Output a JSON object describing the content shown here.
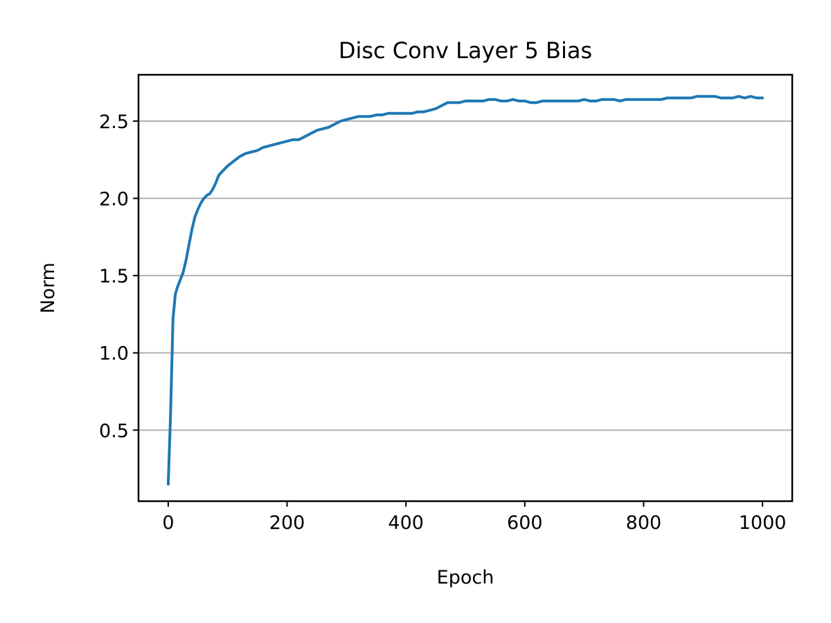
{
  "chart_data": {
    "type": "line",
    "title": "Disc Conv Layer 5 Bias",
    "xlabel": "Epoch",
    "ylabel": "Norm",
    "xlim": [
      -50,
      1050
    ],
    "ylim": [
      0.04,
      2.8
    ],
    "x_ticks": [
      0,
      200,
      400,
      600,
      800,
      1000
    ],
    "x_tick_labels": [
      "0",
      "200",
      "400",
      "600",
      "800",
      "1000"
    ],
    "y_ticks": [
      0.5,
      1.0,
      1.5,
      2.0,
      2.5
    ],
    "y_tick_labels": [
      "0.5",
      "1.0",
      "1.5",
      "2.0",
      "2.5"
    ],
    "grid": "y-major",
    "legend": "none",
    "colors": {
      "series": "#1f77b4",
      "grid": "#b0b0b0"
    },
    "series": [
      {
        "x": [
          0,
          4,
          8,
          10,
          12,
          15,
          20,
          25,
          30,
          35,
          40,
          45,
          50,
          55,
          60,
          65,
          70,
          75,
          80,
          85,
          90,
          95,
          100,
          110,
          120,
          130,
          140,
          150,
          160,
          170,
          180,
          190,
          200,
          210,
          220,
          230,
          240,
          250,
          260,
          270,
          280,
          290,
          300,
          310,
          320,
          330,
          340,
          350,
          360,
          370,
          380,
          390,
          400,
          410,
          420,
          430,
          440,
          450,
          460,
          470,
          480,
          490,
          500,
          510,
          520,
          530,
          540,
          550,
          560,
          570,
          580,
          590,
          600,
          610,
          620,
          630,
          640,
          650,
          660,
          670,
          680,
          690,
          700,
          710,
          720,
          730,
          740,
          750,
          760,
          770,
          780,
          790,
          800,
          810,
          820,
          830,
          840,
          850,
          860,
          870,
          880,
          890,
          900,
          910,
          920,
          930,
          940,
          950,
          960,
          970,
          980,
          990,
          1000
        ],
        "y": [
          0.15,
          0.6,
          1.22,
          1.3,
          1.38,
          1.42,
          1.47,
          1.52,
          1.6,
          1.7,
          1.8,
          1.88,
          1.93,
          1.97,
          2.0,
          2.02,
          2.03,
          2.06,
          2.1,
          2.15,
          2.17,
          2.19,
          2.21,
          2.24,
          2.27,
          2.29,
          2.3,
          2.31,
          2.33,
          2.34,
          2.35,
          2.36,
          2.37,
          2.38,
          2.38,
          2.4,
          2.42,
          2.44,
          2.45,
          2.46,
          2.48,
          2.5,
          2.51,
          2.52,
          2.53,
          2.53,
          2.53,
          2.54,
          2.54,
          2.55,
          2.55,
          2.55,
          2.55,
          2.55,
          2.56,
          2.56,
          2.57,
          2.58,
          2.6,
          2.62,
          2.62,
          2.62,
          2.63,
          2.63,
          2.63,
          2.63,
          2.64,
          2.64,
          2.63,
          2.63,
          2.64,
          2.63,
          2.63,
          2.62,
          2.62,
          2.63,
          2.63,
          2.63,
          2.63,
          2.63,
          2.63,
          2.63,
          2.64,
          2.63,
          2.63,
          2.64,
          2.64,
          2.64,
          2.63,
          2.64,
          2.64,
          2.64,
          2.64,
          2.64,
          2.64,
          2.64,
          2.65,
          2.65,
          2.65,
          2.65,
          2.65,
          2.66,
          2.66,
          2.66,
          2.66,
          2.65,
          2.65,
          2.65,
          2.66,
          2.65,
          2.66,
          2.65,
          2.65
        ]
      }
    ]
  }
}
